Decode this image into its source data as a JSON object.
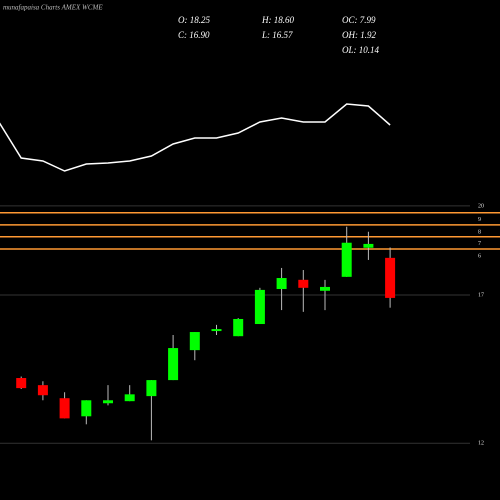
{
  "chart_data": {
    "type": "candlestick",
    "title": "munafapaisa Charts AMEX WCME",
    "stats": [
      "O: 18.25",
      "H: 18.60",
      "OC: 7.99",
      "C: 16.90",
      "L: 16.57",
      "OH: 1.92",
      "OL: 10.14"
    ],
    "x": [
      1,
      2,
      3,
      4,
      5,
      6,
      7,
      8,
      9,
      10,
      11,
      12,
      13,
      14,
      15,
      16,
      17,
      18
    ],
    "xlim": [
      0,
      23
    ],
    "open": [
      14.2,
      13.96,
      13.52,
      12.91,
      13.35,
      13.42,
      13.59,
      14.13,
      15.14,
      15.79,
      15.61,
      16.02,
      17.2,
      17.51,
      17.14,
      17.61,
      18.59,
      18.25
    ],
    "high": [
      14.25,
      14.09,
      13.72,
      13.45,
      13.96,
      13.96,
      14.13,
      15.65,
      15.75,
      15.99,
      16.22,
      17.24,
      17.91,
      17.84,
      17.51,
      19.3,
      19.13,
      18.6
    ],
    "low": [
      13.83,
      13.45,
      12.84,
      12.64,
      13.28,
      13.42,
      12.1,
      14.13,
      14.8,
      15.65,
      15.61,
      16.02,
      16.49,
      16.43,
      16.49,
      17.61,
      18.18,
      16.57
    ],
    "close": [
      13.86,
      13.62,
      12.84,
      13.45,
      13.45,
      13.65,
      14.13,
      15.21,
      15.75,
      15.85,
      16.19,
      17.17,
      17.57,
      17.24,
      17.27,
      18.76,
      18.72,
      16.9
    ],
    "up_color": "#00ff00",
    "down_color": "#ff0000",
    "ylim": [
      11.1,
      20.2
    ],
    "yticks": [
      20,
      17,
      12
    ],
    "levels": [
      {
        "value": 19.77,
        "label": "9"
      },
      {
        "value": 19.36,
        "label": "8"
      },
      {
        "value": 18.96,
        "label": "7"
      },
      {
        "value": 18.55,
        "label": "6"
      }
    ],
    "level_color": "#ff9933",
    "indicator": {
      "x": [
        0,
        1,
        2,
        3,
        4,
        5,
        6,
        7,
        8,
        9,
        10,
        11,
        12,
        13,
        14,
        15,
        16,
        17,
        18
      ],
      "values": [
        77,
        42,
        39,
        29,
        36,
        37,
        39,
        44,
        56,
        62,
        62,
        67,
        78,
        82,
        78,
        78,
        96,
        94,
        75
      ],
      "ylim": [
        0,
        120
      ],
      "color": "#ffffff"
    }
  }
}
